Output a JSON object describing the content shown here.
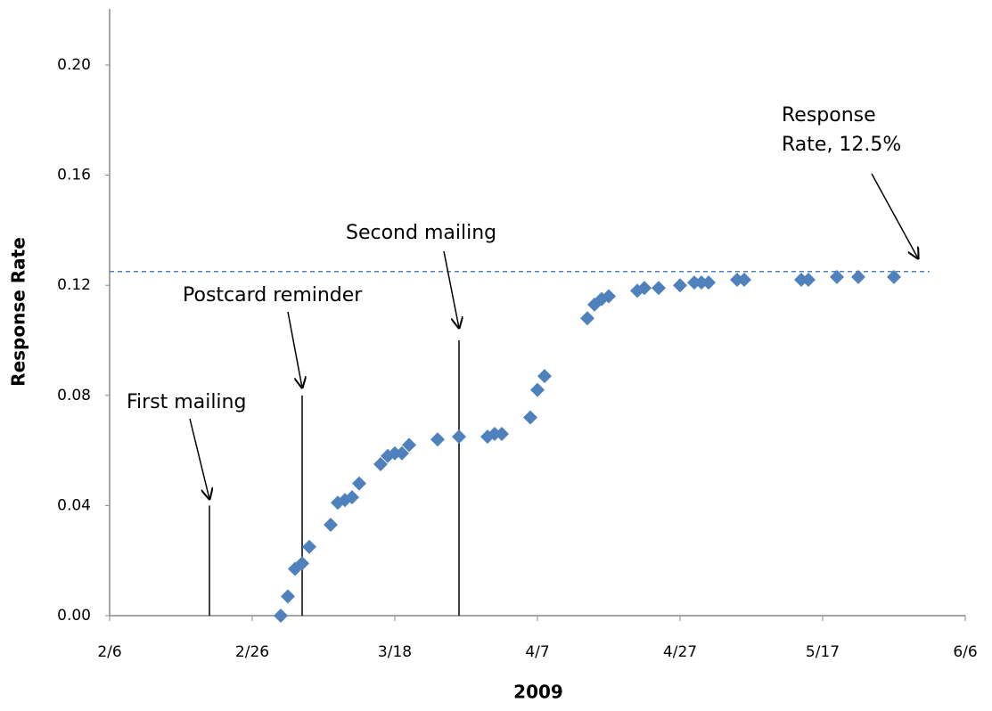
{
  "chart_data": {
    "type": "scatter",
    "x_label": "2009",
    "y_label": "Response Rate",
    "x": [
      "3/2",
      "3/3",
      "3/4",
      "3/5",
      "3/6",
      "3/9",
      "3/10",
      "3/11",
      "3/12",
      "3/13",
      "3/16",
      "3/17",
      "3/18",
      "3/19",
      "3/20",
      "3/24",
      "3/27",
      "3/31",
      "4/1",
      "4/2",
      "4/6",
      "4/7",
      "4/8",
      "4/14",
      "4/15",
      "4/16",
      "4/17",
      "4/21",
      "4/22",
      "4/24",
      "4/27",
      "4/29",
      "4/30",
      "5/1",
      "5/5",
      "5/6",
      "5/14",
      "5/15",
      "5/19",
      "5/22",
      "5/27"
    ],
    "values": [
      0.0,
      0.007,
      0.017,
      0.019,
      0.025,
      0.033,
      0.041,
      0.042,
      0.043,
      0.048,
      0.055,
      0.058,
      0.059,
      0.059,
      0.062,
      0.064,
      0.065,
      0.065,
      0.066,
      0.066,
      0.072,
      0.082,
      0.087,
      0.108,
      0.113,
      0.115,
      0.116,
      0.118,
      0.119,
      0.119,
      0.12,
      0.121,
      0.121,
      0.121,
      0.122,
      0.122,
      0.122,
      0.122,
      0.123,
      0.123,
      0.123
    ],
    "color": "#4f81bd",
    "xlim": [
      "2/6",
      "6/6"
    ],
    "xticks": [
      "2/6",
      "2/26",
      "3/18",
      "4/7",
      "4/27",
      "5/17",
      "6/6"
    ],
    "ylim": [
      0,
      0.2
    ],
    "yticks": [
      {
        "value": 0,
        "label": "0.00"
      },
      {
        "value": 0.04,
        "label": "0.04"
      },
      {
        "value": 0.08,
        "label": "0.08"
      },
      {
        "value": 0.12,
        "label": "0.12"
      },
      {
        "value": 0.16,
        "label": "0.16"
      },
      {
        "value": 0.2,
        "label": "0.20"
      }
    ],
    "events": [
      {
        "label": "First mailing",
        "x": "2/20",
        "y": 0.04
      },
      {
        "label": "Postcard reminder",
        "x": "3/5",
        "y": 0.08
      },
      {
        "label": "Second mailing",
        "x": "3/27",
        "y": 0.1
      }
    ],
    "reference_line": {
      "value": 0.125,
      "label": [
        "Response",
        "Rate, 12.5%"
      ],
      "color": "#4f81bd"
    }
  }
}
